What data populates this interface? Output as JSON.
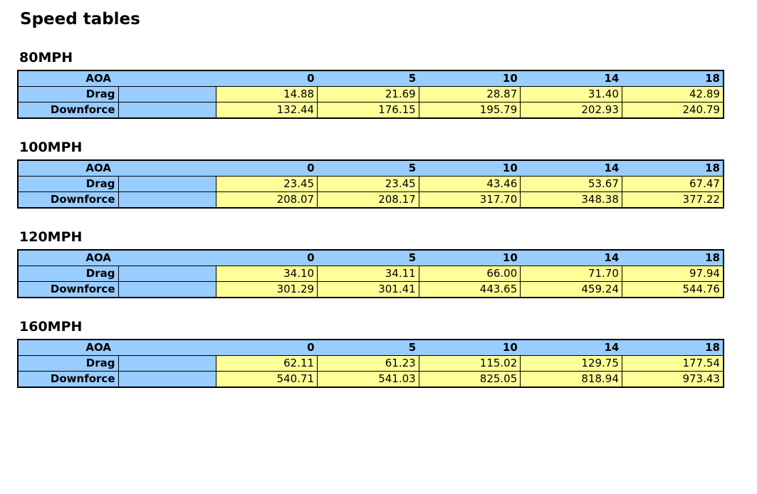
{
  "page": {
    "title": "Speed tables"
  },
  "colors": {
    "header_blue": "#99CCFF",
    "value_yellow": "#FFFF99",
    "border": "#000000",
    "background": "#FFFFFF"
  },
  "row_labels": {
    "aoa": "AOA",
    "drag": "Drag",
    "downforce": "Downforce"
  },
  "aoa_values": [
    "0",
    "5",
    "10",
    "14",
    "18"
  ],
  "tables": [
    {
      "heading": "80MPH",
      "drag": [
        "14.88",
        "21.69",
        "28.87",
        "31.40",
        "42.89"
      ],
      "downforce": [
        "132.44",
        "176.15",
        "195.79",
        "202.93",
        "240.79"
      ]
    },
    {
      "heading": "100MPH",
      "drag": [
        "23.45",
        "23.45",
        "43.46",
        "53.67",
        "67.47"
      ],
      "downforce": [
        "208.07",
        "208.17",
        "317.70",
        "348.38",
        "377.22"
      ]
    },
    {
      "heading": "120MPH",
      "drag": [
        "34.10",
        "34.11",
        "66.00",
        "71.70",
        "97.94"
      ],
      "downforce": [
        "301.29",
        "301.41",
        "443.65",
        "459.24",
        "544.76"
      ]
    },
    {
      "heading": "160MPH",
      "drag": [
        "62.11",
        "61.23",
        "115.02",
        "129.75",
        "177.54"
      ],
      "downforce": [
        "540.71",
        "541.03",
        "825.05",
        "818.94",
        "973.43"
      ]
    }
  ]
}
